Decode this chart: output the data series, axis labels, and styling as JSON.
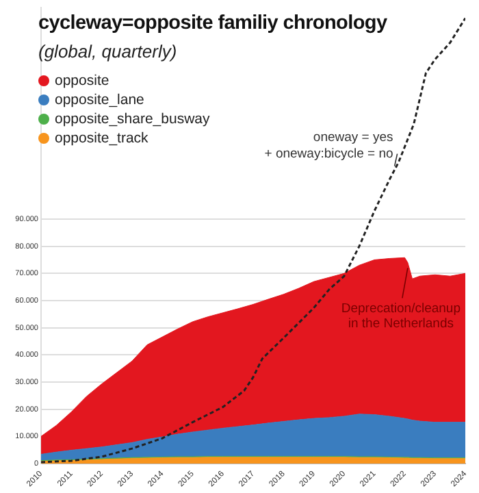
{
  "chart_data": {
    "type": "area",
    "title": "cycleway=opposite familiy chronology",
    "subtitle": "(global, quarterly)",
    "stacked": true,
    "legend": "top left",
    "grid": "y",
    "x": [
      2010,
      2010.5,
      2011,
      2011.5,
      2012,
      2012.5,
      2013,
      2013.5,
      2014,
      2014.5,
      2015,
      2015.5,
      2016,
      2016.5,
      2017,
      2017.5,
      2018,
      2018.5,
      2019,
      2019.5,
      2020,
      2020.5,
      2021,
      2021.5,
      2022,
      2022.1,
      2022.25,
      2022.5,
      2023,
      2023.5,
      2024
    ],
    "xlim": [
      2010,
      2024
    ],
    "xticks": [
      2010,
      2011,
      2012,
      2013,
      2014,
      2015,
      2016,
      2017,
      2018,
      2019,
      2020,
      2021,
      2022,
      2023,
      2024
    ],
    "ylim": [
      0,
      168000
    ],
    "yticks": [
      0,
      {
        "value": 10000,
        "label": "10.000"
      },
      {
        "value": 20000,
        "label": "20.000"
      },
      {
        "value": 30000,
        "label": "30.000"
      },
      {
        "value": 40000,
        "label": "40.000"
      },
      {
        "value": 50000,
        "label": "50.000"
      },
      {
        "value": 60000,
        "label": "60.000"
      },
      {
        "value": 70000,
        "label": "70.000"
      },
      {
        "value": 80000,
        "label": "80.000"
      },
      {
        "value": 90000,
        "label": "90.000"
      }
    ],
    "series": [
      {
        "name": "opposite_track",
        "color": "#f7941d",
        "values": [
          800,
          1000,
          1100,
          1300,
          1500,
          1700,
          1900,
          2000,
          2100,
          2200,
          2200,
          2300,
          2300,
          2300,
          2300,
          2300,
          2300,
          2300,
          2300,
          2300,
          2300,
          2200,
          2200,
          2100,
          2000,
          2000,
          1900,
          1900,
          1800,
          1800,
          1800
        ]
      },
      {
        "name": "opposite_share_busway",
        "color": "#4daf4a",
        "values": [
          300,
          300,
          300,
          300,
          300,
          300,
          300,
          300,
          300,
          300,
          300,
          300,
          300,
          300,
          300,
          300,
          300,
          300,
          300,
          300,
          300,
          300,
          300,
          300,
          300,
          300,
          300,
          300,
          300,
          300,
          300
        ]
      },
      {
        "name": "opposite_lane",
        "color": "#3a7dbf",
        "values": [
          2300,
          2900,
          3500,
          3900,
          4300,
          4900,
          5500,
          6600,
          7400,
          8300,
          9100,
          9700,
          10400,
          11000,
          11600,
          12300,
          12900,
          13500,
          14000,
          14300,
          14800,
          15700,
          15500,
          15000,
          14300,
          14100,
          13800,
          13400,
          13100,
          13100,
          13100
        ]
      },
      {
        "name": "opposite",
        "color": "#e3171f",
        "values": [
          6600,
          9800,
          14100,
          19200,
          23200,
          26600,
          30000,
          34800,
          36800,
          38700,
          40600,
          41700,
          42500,
          43400,
          44400,
          45600,
          46800,
          48400,
          50400,
          51600,
          52600,
          54800,
          57000,
          58100,
          59200,
          57600,
          52000,
          53400,
          54300,
          53800,
          54800
        ]
      },
      {
        "name": "oneway = yes\n+ oneway:bicycle = no",
        "type": "line",
        "line_style": "dashed",
        "color": "#222222",
        "x": [
          2010,
          2011,
          2012,
          2013,
          2014,
          2015,
          2016,
          2016.7,
          2017,
          2017.3,
          2018,
          2019,
          2019.5,
          2020,
          2020.5,
          2021,
          2021.5,
          2021.8,
          2022.3,
          2022.7,
          2023,
          2023.5,
          2024
        ],
        "values": [
          500,
          1000,
          2500,
          5500,
          9300,
          15200,
          20800,
          26800,
          31800,
          38600,
          46200,
          57300,
          64000,
          69000,
          80000,
          93000,
          104600,
          111000,
          125000,
          143800,
          148800,
          155000,
          164000
        ]
      }
    ],
    "annotations": [
      {
        "text": "Deprecation/cleanup\nin the Netherlands",
        "x": 2022.1,
        "y": 72000
      }
    ]
  }
}
